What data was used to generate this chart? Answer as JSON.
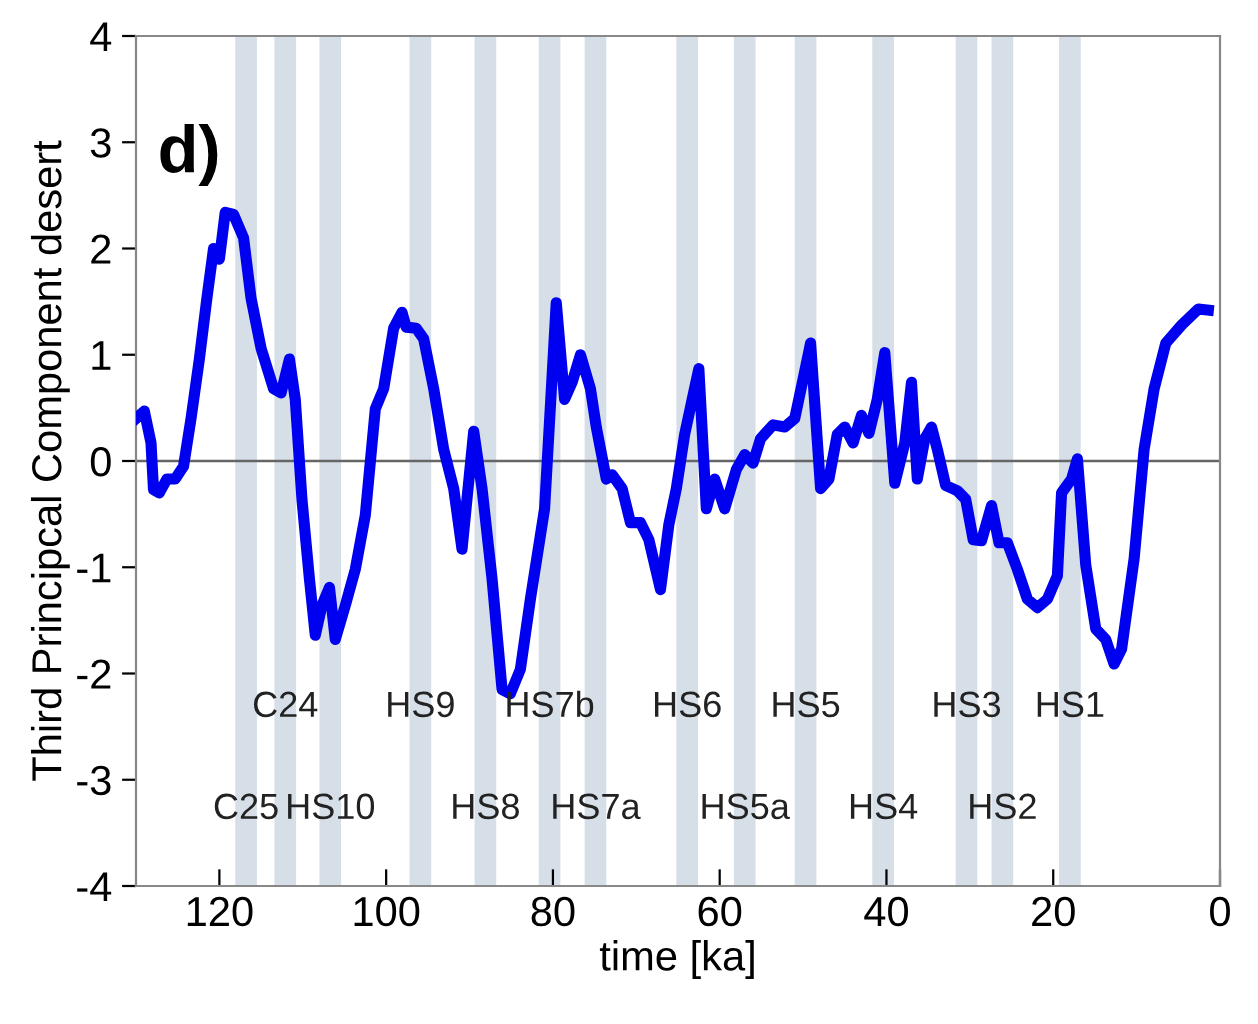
{
  "chart_data": {
    "type": "line",
    "xlabel": "time [ka]",
    "ylabel": "Third Principcal Component desert",
    "xlim": [
      130,
      0
    ],
    "xticks": [
      120,
      100,
      80,
      60,
      40,
      20,
      0
    ],
    "ylim": [
      -4,
      4
    ],
    "yticks": [
      -4,
      -3,
      -2,
      -1,
      0,
      1,
      2,
      3,
      4
    ],
    "grid": false,
    "legend": false,
    "marker": "none",
    "line_style": "solid",
    "series": [
      {
        "color": "#0000f0",
        "x": [
          130,
          129,
          128.2,
          127.9,
          127.2,
          126.3,
          125.3,
          124.3,
          123.4,
          122.4,
          121.5,
          120.7,
          120,
          119.3,
          118.3,
          117.1,
          116.2,
          115,
          113.5,
          112.6,
          111.6,
          110.9,
          110.1,
          109.2,
          108.5,
          107.7,
          106.8,
          106.1,
          104.9,
          103.7,
          102.5,
          101.3,
          100.3,
          99.1,
          98.1,
          97.6,
          96.4,
          95.5,
          94.3,
          93.1,
          91.9,
          90.9,
          89.5,
          88.5,
          87.3,
          86.1,
          85.1,
          83.9,
          82.7,
          81,
          79.6,
          78.6,
          77.7,
          76.7,
          75.5,
          74.8,
          73.6,
          72.9,
          71.7,
          70.7,
          69.5,
          68.5,
          67.1,
          66.1,
          65.2,
          64.2,
          63.3,
          62.5,
          61.6,
          60.6,
          59.4,
          58,
          57,
          56,
          55.1,
          53.6,
          52.2,
          51,
          50,
          49.1,
          47.9,
          46.9,
          45.9,
          45,
          44,
          43,
          42.1,
          41.1,
          40.2,
          39,
          37.8,
          37,
          36.3,
          35.4,
          34.6,
          33.9,
          32.9,
          31.5,
          30.5,
          29.6,
          28.6,
          27.4,
          26.5,
          25.5,
          24.3,
          23.1,
          21.9,
          20.7,
          19.5,
          19,
          17.8,
          17.1,
          16.1,
          14.9,
          13.7,
          12.7,
          11.8,
          10.3,
          9.1,
          7.9,
          6.5,
          4.6,
          2.6,
          1.4
        ],
        "values": [
          0.4,
          0.47,
          0.17,
          -0.27,
          -0.3,
          -0.17,
          -0.17,
          -0.05,
          0.4,
          0.96,
          1.53,
          2.0,
          1.9,
          2.34,
          2.32,
          2.1,
          1.53,
          1.06,
          0.68,
          0.64,
          0.96,
          0.58,
          -0.36,
          -1.11,
          -1.64,
          -1.36,
          -1.19,
          -1.68,
          -1.36,
          -1.02,
          -0.51,
          0.49,
          0.68,
          1.25,
          1.4,
          1.26,
          1.25,
          1.15,
          0.68,
          0.11,
          -0.26,
          -0.83,
          0.28,
          -0.26,
          -1.11,
          -2.15,
          -2.19,
          -1.96,
          -1.3,
          -0.45,
          1.49,
          0.58,
          0.74,
          1.0,
          0.68,
          0.32,
          -0.17,
          -0.13,
          -0.26,
          -0.58,
          -0.58,
          -0.74,
          -1.21,
          -0.6,
          -0.26,
          0.25,
          0.58,
          0.87,
          -0.45,
          -0.17,
          -0.45,
          -0.08,
          0.06,
          -0.02,
          0.21,
          0.34,
          0.32,
          0.4,
          0.77,
          1.11,
          -0.26,
          -0.17,
          0.25,
          0.32,
          0.17,
          0.43,
          0.26,
          0.58,
          1.02,
          -0.21,
          0.17,
          0.74,
          -0.17,
          0.21,
          0.32,
          0.11,
          -0.23,
          -0.28,
          -0.36,
          -0.74,
          -0.75,
          -0.42,
          -0.77,
          -0.77,
          -1.02,
          -1.3,
          -1.38,
          -1.3,
          -1.08,
          -0.3,
          -0.17,
          0.02,
          -0.98,
          -1.58,
          -1.68,
          -1.91,
          -1.77,
          -0.92,
          0.11,
          0.68,
          1.11,
          1.28,
          1.43,
          1.42
        ]
      }
    ],
    "ref_lines": [
      {
        "axis": "y",
        "value": 0,
        "color": "#666666",
        "line_style": "solid"
      }
    ],
    "bands": [
      {
        "axis": "x",
        "from": 118.1,
        "to": 115.5,
        "color": "#d6dfe8",
        "label": "C25"
      },
      {
        "axis": "x",
        "from": 113.4,
        "to": 110.8,
        "color": "#d6dfe8",
        "label": "C24"
      },
      {
        "axis": "x",
        "from": 108,
        "to": 105.4,
        "color": "#d6dfe8",
        "label": "HS10"
      },
      {
        "axis": "x",
        "from": 97.2,
        "to": 94.6,
        "color": "#d6dfe8",
        "label": "HS9"
      },
      {
        "axis": "x",
        "from": 89.4,
        "to": 86.8,
        "color": "#d6dfe8",
        "label": "HS8"
      },
      {
        "axis": "x",
        "from": 81.7,
        "to": 79.1,
        "color": "#d6dfe8",
        "label": "HS7b"
      },
      {
        "axis": "x",
        "from": 76.2,
        "to": 73.6,
        "color": "#d6dfe8",
        "label": "HS7a"
      },
      {
        "axis": "x",
        "from": 65.2,
        "to": 62.6,
        "color": "#d6dfe8",
        "label": "HS6"
      },
      {
        "axis": "x",
        "from": 58.3,
        "to": 55.7,
        "color": "#d6dfe8",
        "label": "HS5a"
      },
      {
        "axis": "x",
        "from": 51,
        "to": 48.4,
        "color": "#d6dfe8",
        "label": "HS5"
      },
      {
        "axis": "x",
        "from": 41.7,
        "to": 39.1,
        "color": "#d6dfe8",
        "label": "HS4"
      },
      {
        "axis": "x",
        "from": 31.7,
        "to": 29.1,
        "color": "#d6dfe8",
        "label": "HS3"
      },
      {
        "axis": "x",
        "from": 27.4,
        "to": 24.8,
        "color": "#d6dfe8",
        "label": "HS2"
      },
      {
        "axis": "x",
        "from": 19.3,
        "to": 16.7,
        "color": "#d6dfe8",
        "label": "HS1"
      }
    ],
    "annotations": [
      "d)"
    ]
  }
}
